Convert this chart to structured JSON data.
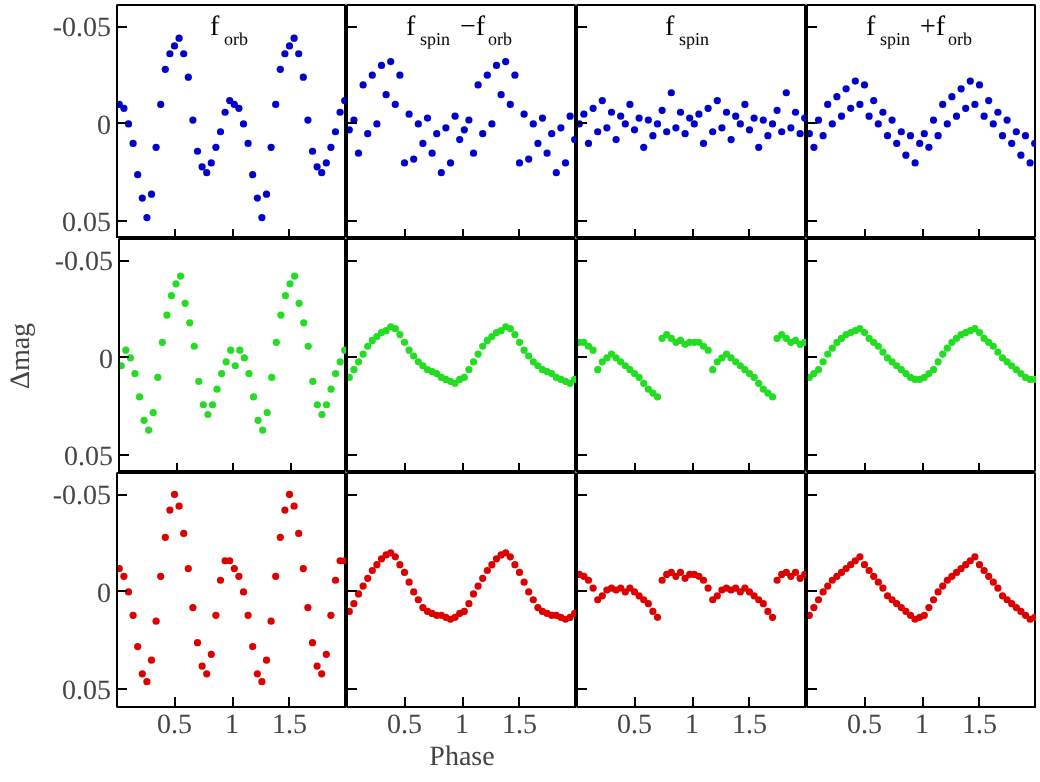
{
  "chart_data": [
    {
      "type": "scatter",
      "title": "f$_{orb}$",
      "color": "#0000cc",
      "marker": "circle",
      "xlim": [
        0,
        2
      ],
      "ylim": [
        0.059,
        -0.061
      ],
      "xticks": [
        0.5,
        1,
        1.5
      ],
      "yticks": [
        -0.05,
        0,
        0.05
      ],
      "tick_labels": "y",
      "x": [
        0.02,
        0.06,
        0.1,
        0.14,
        0.18,
        0.22,
        0.26,
        0.3,
        0.34,
        0.38,
        0.42,
        0.46,
        0.5,
        0.54,
        0.58,
        0.62,
        0.66,
        0.7,
        0.74,
        0.78,
        0.82,
        0.86,
        0.9,
        0.94,
        0.98,
        1.02,
        1.06,
        1.1,
        1.14,
        1.18,
        1.22,
        1.26,
        1.3,
        1.34,
        1.38,
        1.42,
        1.46,
        1.5,
        1.54,
        1.58,
        1.62,
        1.66,
        1.7,
        1.74,
        1.78,
        1.82,
        1.86,
        1.9,
        1.94,
        1.98
      ],
      "values": [
        -0.01,
        -0.008,
        0.0,
        0.01,
        0.026,
        0.038,
        0.048,
        0.036,
        0.012,
        -0.01,
        -0.028,
        -0.036,
        -0.04,
        -0.044,
        -0.036,
        -0.024,
        -0.002,
        0.014,
        0.022,
        0.025,
        0.02,
        0.012,
        0.004,
        -0.006,
        -0.012,
        -0.01,
        -0.008,
        0.0,
        0.01,
        0.026,
        0.038,
        0.048,
        0.036,
        0.012,
        -0.01,
        -0.028,
        -0.036,
        -0.04,
        -0.044,
        -0.036,
        -0.024,
        -0.002,
        0.014,
        0.022,
        0.025,
        0.02,
        0.012,
        0.004,
        -0.006,
        -0.012
      ]
    },
    {
      "type": "scatter",
      "title": "f$_{spin}$−f$_{orb}$",
      "color": "#0000cc",
      "marker": "circle",
      "xlim": [
        0,
        2
      ],
      "ylim": [
        0.059,
        -0.061
      ],
      "xticks": [
        0.5,
        1,
        1.5
      ],
      "yticks": [
        -0.05,
        0,
        0.05
      ],
      "tick_labels": false,
      "x": [
        0.02,
        0.06,
        0.1,
        0.14,
        0.18,
        0.22,
        0.26,
        0.3,
        0.34,
        0.38,
        0.42,
        0.46,
        0.5,
        0.54,
        0.58,
        0.62,
        0.66,
        0.7,
        0.74,
        0.78,
        0.82,
        0.86,
        0.9,
        0.94,
        0.98,
        1.02,
        1.06,
        1.1,
        1.14,
        1.18,
        1.22,
        1.26,
        1.3,
        1.34,
        1.38,
        1.42,
        1.46,
        1.5,
        1.54,
        1.58,
        1.62,
        1.66,
        1.7,
        1.74,
        1.78,
        1.82,
        1.86,
        1.9,
        1.94,
        1.98
      ],
      "values": [
        0.003,
        -0.002,
        0.015,
        -0.02,
        0.005,
        -0.025,
        0.0,
        -0.03,
        -0.015,
        -0.032,
        -0.01,
        -0.025,
        0.02,
        -0.005,
        0.018,
        0.0,
        0.01,
        -0.003,
        0.015,
        0.005,
        0.025,
        0.002,
        0.02,
        -0.004,
        0.008,
        0.003,
        -0.002,
        0.015,
        -0.02,
        0.005,
        -0.025,
        0.0,
        -0.03,
        -0.015,
        -0.032,
        -0.01,
        -0.025,
        0.02,
        -0.005,
        0.018,
        0.0,
        0.01,
        -0.003,
        0.015,
        0.005,
        0.025,
        0.002,
        0.02,
        -0.004,
        0.008
      ]
    },
    {
      "type": "scatter",
      "title": "f$_{spin}$",
      "color": "#0000cc",
      "marker": "circle",
      "xlim": [
        0,
        2
      ],
      "ylim": [
        0.059,
        -0.061
      ],
      "xticks": [
        0.5,
        1,
        1.5
      ],
      "yticks": [
        -0.05,
        0,
        0.05
      ],
      "tick_labels": false,
      "x": [
        0.02,
        0.06,
        0.1,
        0.14,
        0.18,
        0.22,
        0.26,
        0.3,
        0.34,
        0.38,
        0.42,
        0.46,
        0.5,
        0.54,
        0.58,
        0.62,
        0.66,
        0.7,
        0.74,
        0.78,
        0.82,
        0.86,
        0.9,
        0.94,
        0.98,
        1.02,
        1.06,
        1.1,
        1.14,
        1.18,
        1.22,
        1.26,
        1.3,
        1.34,
        1.38,
        1.42,
        1.46,
        1.5,
        1.54,
        1.58,
        1.62,
        1.66,
        1.7,
        1.74,
        1.78,
        1.82,
        1.86,
        1.9,
        1.94,
        1.98
      ],
      "values": [
        0.0,
        -0.005,
        0.01,
        -0.008,
        0.004,
        -0.012,
        0.002,
        -0.006,
        0.008,
        -0.004,
        0.0,
        -0.01,
        0.003,
        -0.003,
        0.012,
        -0.002,
        0.006,
        0.0,
        -0.007,
        0.004,
        -0.016,
        0.002,
        -0.006,
        0.005,
        -0.003,
        0.0,
        -0.005,
        0.01,
        -0.008,
        0.004,
        -0.012,
        0.002,
        -0.006,
        0.008,
        -0.004,
        0.0,
        -0.01,
        0.003,
        -0.003,
        0.012,
        -0.002,
        0.006,
        0.0,
        -0.007,
        0.004,
        -0.016,
        0.002,
        -0.006,
        0.005,
        -0.003
      ]
    },
    {
      "type": "scatter",
      "title": "f$_{spin}$+f$_{orb}$",
      "color": "#0000cc",
      "marker": "circle",
      "xlim": [
        0,
        2
      ],
      "ylim": [
        0.059,
        -0.061
      ],
      "xticks": [
        0.5,
        1,
        1.5
      ],
      "yticks": [
        -0.05,
        0,
        0.05
      ],
      "tick_labels": false,
      "x": [
        0.02,
        0.06,
        0.1,
        0.14,
        0.18,
        0.22,
        0.26,
        0.3,
        0.34,
        0.38,
        0.42,
        0.46,
        0.5,
        0.54,
        0.58,
        0.62,
        0.66,
        0.7,
        0.74,
        0.78,
        0.82,
        0.86,
        0.9,
        0.94,
        0.98,
        1.02,
        1.06,
        1.1,
        1.14,
        1.18,
        1.22,
        1.26,
        1.3,
        1.34,
        1.38,
        1.42,
        1.46,
        1.5,
        1.54,
        1.58,
        1.62,
        1.66,
        1.7,
        1.74,
        1.78,
        1.82,
        1.86,
        1.9,
        1.94,
        1.98
      ],
      "values": [
        0.005,
        0.012,
        -0.002,
        0.006,
        -0.01,
        0.0,
        -0.014,
        -0.004,
        -0.018,
        -0.008,
        -0.022,
        -0.01,
        -0.02,
        -0.004,
        -0.012,
        0.0,
        -0.006,
        0.006,
        -0.002,
        0.01,
        0.004,
        0.016,
        0.006,
        0.02,
        0.01,
        0.005,
        0.012,
        -0.002,
        0.006,
        -0.01,
        0.0,
        -0.014,
        -0.004,
        -0.018,
        -0.008,
        -0.022,
        -0.01,
        -0.02,
        -0.004,
        -0.012,
        0.0,
        -0.006,
        0.006,
        -0.002,
        0.01,
        0.004,
        0.016,
        0.006,
        0.02,
        0.01
      ]
    },
    {
      "type": "scatter",
      "ylabel": "Δmag",
      "color": "#22dd22",
      "marker": "circle",
      "xlim": [
        0,
        2
      ],
      "ylim": [
        0.059,
        -0.061
      ],
      "xticks": [
        0.5,
        1,
        1.5
      ],
      "yticks": [
        -0.05,
        0,
        0.05
      ],
      "tick_labels": "y",
      "x": [
        0.02,
        0.06,
        0.1,
        0.14,
        0.18,
        0.22,
        0.26,
        0.3,
        0.34,
        0.38,
        0.42,
        0.46,
        0.5,
        0.54,
        0.58,
        0.62,
        0.66,
        0.7,
        0.74,
        0.78,
        0.82,
        0.86,
        0.9,
        0.94,
        0.98,
        1.02,
        1.06,
        1.1,
        1.14,
        1.18,
        1.22,
        1.26,
        1.3,
        1.34,
        1.38,
        1.42,
        1.46,
        1.5,
        1.54,
        1.58,
        1.62,
        1.66,
        1.7,
        1.74,
        1.78,
        1.82,
        1.86,
        1.9,
        1.94,
        1.98
      ],
      "values": [
        0.004,
        -0.004,
        0.0,
        0.008,
        0.02,
        0.032,
        0.037,
        0.028,
        0.01,
        -0.008,
        -0.022,
        -0.032,
        -0.038,
        -0.042,
        -0.028,
        -0.018,
        -0.006,
        0.012,
        0.024,
        0.029,
        0.024,
        0.016,
        0.008,
        0.002,
        -0.004,
        0.004,
        -0.004,
        0.0,
        0.008,
        0.02,
        0.032,
        0.037,
        0.028,
        0.01,
        -0.008,
        -0.022,
        -0.032,
        -0.038,
        -0.042,
        -0.028,
        -0.018,
        -0.006,
        0.012,
        0.024,
        0.029,
        0.024,
        0.016,
        0.008,
        0.002,
        -0.004
      ]
    },
    {
      "type": "scatter",
      "color": "#22dd22",
      "marker": "circle",
      "xlim": [
        0,
        2
      ],
      "ylim": [
        0.059,
        -0.061
      ],
      "xticks": [
        0.5,
        1,
        1.5
      ],
      "yticks": [
        -0.05,
        0,
        0.05
      ],
      "tick_labels": false,
      "x": [
        0.02,
        0.06,
        0.1,
        0.14,
        0.18,
        0.22,
        0.26,
        0.3,
        0.34,
        0.38,
        0.42,
        0.46,
        0.5,
        0.54,
        0.58,
        0.62,
        0.66,
        0.7,
        0.74,
        0.78,
        0.82,
        0.86,
        0.9,
        0.94,
        0.98,
        1.02,
        1.06,
        1.1,
        1.14,
        1.18,
        1.22,
        1.26,
        1.3,
        1.34,
        1.38,
        1.42,
        1.46,
        1.5,
        1.54,
        1.58,
        1.62,
        1.66,
        1.7,
        1.74,
        1.78,
        1.82,
        1.86,
        1.9,
        1.94,
        1.98
      ],
      "values": [
        0.01,
        0.006,
        0.002,
        -0.002,
        -0.006,
        -0.009,
        -0.011,
        -0.013,
        -0.014,
        -0.016,
        -0.015,
        -0.012,
        -0.008,
        -0.004,
        -0.001,
        0.002,
        0.004,
        0.006,
        0.007,
        0.008,
        0.01,
        0.011,
        0.012,
        0.013,
        0.011,
        0.01,
        0.006,
        0.002,
        -0.002,
        -0.006,
        -0.009,
        -0.011,
        -0.013,
        -0.014,
        -0.016,
        -0.015,
        -0.012,
        -0.008,
        -0.004,
        -0.001,
        0.002,
        0.004,
        0.006,
        0.007,
        0.008,
        0.01,
        0.011,
        0.012,
        0.013,
        0.011
      ]
    },
    {
      "type": "scatter",
      "color": "#22dd22",
      "marker": "circle",
      "xlim": [
        0,
        2
      ],
      "ylim": [
        0.059,
        -0.061
      ],
      "xticks": [
        0.5,
        1,
        1.5
      ],
      "yticks": [
        -0.05,
        0,
        0.05
      ],
      "tick_labels": false,
      "x": [
        0.02,
        0.06,
        0.1,
        0.14,
        0.18,
        0.22,
        0.26,
        0.3,
        0.34,
        0.38,
        0.42,
        0.46,
        0.5,
        0.54,
        0.58,
        0.62,
        0.66,
        0.7,
        0.74,
        0.78,
        0.82,
        0.86,
        0.9,
        0.94,
        0.98,
        1.02,
        1.06,
        1.1,
        1.14,
        1.18,
        1.22,
        1.26,
        1.3,
        1.34,
        1.38,
        1.42,
        1.46,
        1.5,
        1.54,
        1.58,
        1.62,
        1.66,
        1.7,
        1.74,
        1.78,
        1.82,
        1.86,
        1.9,
        1.94,
        1.98
      ],
      "values": [
        -0.008,
        -0.008,
        -0.006,
        -0.004,
        0.006,
        0.002,
        0.0,
        -0.002,
        0.0,
        0.002,
        0.004,
        0.006,
        0.008,
        0.01,
        0.013,
        0.016,
        0.018,
        0.02,
        -0.01,
        -0.012,
        -0.01,
        -0.008,
        -0.009,
        -0.007,
        -0.008,
        -0.008,
        -0.008,
        -0.006,
        -0.004,
        0.006,
        0.002,
        0.0,
        -0.002,
        0.0,
        0.002,
        0.004,
        0.006,
        0.008,
        0.01,
        0.013,
        0.016,
        0.018,
        0.02,
        -0.01,
        -0.012,
        -0.01,
        -0.008,
        -0.009,
        -0.007,
        -0.008
      ]
    },
    {
      "type": "scatter",
      "color": "#22dd22",
      "marker": "circle",
      "xlim": [
        0,
        2
      ],
      "ylim": [
        0.059,
        -0.061
      ],
      "xticks": [
        0.5,
        1,
        1.5
      ],
      "yticks": [
        -0.05,
        0,
        0.05
      ],
      "tick_labels": false,
      "x": [
        0.02,
        0.06,
        0.1,
        0.14,
        0.18,
        0.22,
        0.26,
        0.3,
        0.34,
        0.38,
        0.42,
        0.46,
        0.5,
        0.54,
        0.58,
        0.62,
        0.66,
        0.7,
        0.74,
        0.78,
        0.82,
        0.86,
        0.9,
        0.94,
        0.98,
        1.02,
        1.06,
        1.1,
        1.14,
        1.18,
        1.22,
        1.26,
        1.3,
        1.34,
        1.38,
        1.42,
        1.46,
        1.5,
        1.54,
        1.58,
        1.62,
        1.66,
        1.7,
        1.74,
        1.78,
        1.82,
        1.86,
        1.9,
        1.94,
        1.98
      ],
      "values": [
        0.01,
        0.008,
        0.006,
        0.002,
        -0.002,
        -0.005,
        -0.008,
        -0.01,
        -0.012,
        -0.013,
        -0.014,
        -0.015,
        -0.013,
        -0.01,
        -0.008,
        -0.006,
        -0.003,
        0.0,
        0.002,
        0.004,
        0.006,
        0.008,
        0.01,
        0.011,
        0.011,
        0.01,
        0.008,
        0.006,
        0.002,
        -0.002,
        -0.005,
        -0.008,
        -0.01,
        -0.012,
        -0.013,
        -0.014,
        -0.015,
        -0.013,
        -0.01,
        -0.008,
        -0.006,
        -0.003,
        0.0,
        0.002,
        0.004,
        0.006,
        0.008,
        0.01,
        0.011,
        0.011
      ]
    },
    {
      "type": "scatter",
      "color": "#dd0000",
      "marker": "circle",
      "xlim": [
        0,
        2
      ],
      "ylim": [
        0.059,
        -0.061
      ],
      "xticks": [
        0.5,
        1,
        1.5
      ],
      "yticks": [
        -0.05,
        0,
        0.05
      ],
      "x": [
        0.02,
        0.06,
        0.1,
        0.14,
        0.18,
        0.22,
        0.26,
        0.3,
        0.34,
        0.38,
        0.42,
        0.46,
        0.5,
        0.54,
        0.58,
        0.62,
        0.66,
        0.7,
        0.74,
        0.78,
        0.82,
        0.86,
        0.9,
        0.94,
        0.98,
        1.02,
        1.06,
        1.1,
        1.14,
        1.18,
        1.22,
        1.26,
        1.3,
        1.34,
        1.38,
        1.42,
        1.46,
        1.5,
        1.54,
        1.58,
        1.62,
        1.66,
        1.7,
        1.74,
        1.78,
        1.82,
        1.86,
        1.9,
        1.94,
        1.98
      ],
      "values": [
        -0.012,
        -0.008,
        0.0,
        0.012,
        0.028,
        0.042,
        0.046,
        0.035,
        0.015,
        -0.008,
        -0.028,
        -0.042,
        -0.05,
        -0.044,
        -0.03,
        -0.012,
        0.008,
        0.026,
        0.038,
        0.042,
        0.032,
        0.012,
        -0.006,
        -0.016,
        -0.016,
        -0.012,
        -0.008,
        0.0,
        0.012,
        0.028,
        0.042,
        0.046,
        0.035,
        0.015,
        -0.008,
        -0.028,
        -0.042,
        -0.05,
        -0.044,
        -0.03,
        -0.012,
        0.008,
        0.026,
        0.038,
        0.042,
        0.032,
        0.012,
        -0.006,
        -0.016,
        -0.016
      ]
    },
    {
      "type": "scatter",
      "xlabel": "Phase",
      "color": "#dd0000",
      "marker": "circle",
      "xlim": [
        0,
        2
      ],
      "ylim": [
        0.059,
        -0.061
      ],
      "xticks": [
        0.5,
        1,
        1.5
      ],
      "yticks": [
        -0.05,
        0,
        0.05
      ],
      "tick_labels": "x",
      "x": [
        0.02,
        0.06,
        0.1,
        0.14,
        0.18,
        0.22,
        0.26,
        0.3,
        0.34,
        0.38,
        0.42,
        0.46,
        0.5,
        0.54,
        0.58,
        0.62,
        0.66,
        0.7,
        0.74,
        0.78,
        0.82,
        0.86,
        0.9,
        0.94,
        0.98,
        1.02,
        1.06,
        1.1,
        1.14,
        1.18,
        1.22,
        1.26,
        1.3,
        1.34,
        1.38,
        1.42,
        1.46,
        1.5,
        1.54,
        1.58,
        1.62,
        1.66,
        1.7,
        1.74,
        1.78,
        1.82,
        1.86,
        1.9,
        1.94,
        1.98
      ],
      "values": [
        0.01,
        0.006,
        0.001,
        -0.003,
        -0.007,
        -0.011,
        -0.014,
        -0.017,
        -0.019,
        -0.02,
        -0.018,
        -0.014,
        -0.01,
        -0.005,
        0.0,
        0.004,
        0.008,
        0.01,
        0.011,
        0.012,
        0.012,
        0.013,
        0.014,
        0.013,
        0.011,
        0.01,
        0.006,
        0.001,
        -0.003,
        -0.007,
        -0.011,
        -0.014,
        -0.017,
        -0.019,
        -0.02,
        -0.018,
        -0.014,
        -0.01,
        -0.005,
        0.0,
        0.004,
        0.008,
        0.01,
        0.011,
        0.012,
        0.012,
        0.013,
        0.014,
        0.013,
        0.011
      ]
    },
    {
      "type": "scatter",
      "color": "#dd0000",
      "marker": "circle",
      "xlim": [
        0,
        2
      ],
      "ylim": [
        0.059,
        -0.061
      ],
      "xticks": [
        0.5,
        1,
        1.5
      ],
      "yticks": [
        -0.05,
        0,
        0.05
      ],
      "tick_labels": "x",
      "x": [
        0.02,
        0.06,
        0.1,
        0.14,
        0.18,
        0.22,
        0.26,
        0.3,
        0.34,
        0.38,
        0.42,
        0.46,
        0.5,
        0.54,
        0.58,
        0.62,
        0.66,
        0.7,
        0.74,
        0.78,
        0.82,
        0.86,
        0.9,
        0.94,
        0.98,
        1.02,
        1.06,
        1.1,
        1.14,
        1.18,
        1.22,
        1.26,
        1.3,
        1.34,
        1.38,
        1.42,
        1.46,
        1.5,
        1.54,
        1.58,
        1.62,
        1.66,
        1.7,
        1.74,
        1.78,
        1.82,
        1.86,
        1.9,
        1.94,
        1.98
      ],
      "values": [
        -0.009,
        -0.008,
        -0.006,
        -0.002,
        0.004,
        0.002,
        -0.001,
        -0.002,
        -0.001,
        -0.002,
        0.0,
        -0.002,
        0.0,
        0.002,
        0.004,
        0.006,
        0.01,
        0.013,
        -0.006,
        -0.009,
        -0.01,
        -0.008,
        -0.01,
        -0.007,
        -0.009,
        -0.009,
        -0.008,
        -0.006,
        -0.002,
        0.004,
        0.002,
        -0.001,
        -0.002,
        -0.001,
        -0.002,
        0.0,
        -0.002,
        0.0,
        0.002,
        0.004,
        0.006,
        0.01,
        0.013,
        -0.006,
        -0.009,
        -0.01,
        -0.008,
        -0.01,
        -0.007,
        -0.009
      ]
    },
    {
      "type": "scatter",
      "color": "#dd0000",
      "marker": "circle",
      "xlim": [
        0,
        2
      ],
      "ylim": [
        0.059,
        -0.061
      ],
      "xticks": [
        0.5,
        1,
        1.5
      ],
      "yticks": [
        -0.05,
        0,
        0.05
      ],
      "tick_labels": "x",
      "x": [
        0.02,
        0.06,
        0.1,
        0.14,
        0.18,
        0.22,
        0.26,
        0.3,
        0.34,
        0.38,
        0.42,
        0.46,
        0.5,
        0.54,
        0.58,
        0.62,
        0.66,
        0.7,
        0.74,
        0.78,
        0.82,
        0.86,
        0.9,
        0.94,
        0.98,
        1.02,
        1.06,
        1.1,
        1.14,
        1.18,
        1.22,
        1.26,
        1.3,
        1.34,
        1.38,
        1.42,
        1.46,
        1.5,
        1.54,
        1.58,
        1.62,
        1.66,
        1.7,
        1.74,
        1.78,
        1.82,
        1.86,
        1.9,
        1.94,
        1.98
      ],
      "values": [
        0.012,
        0.008,
        0.004,
        0.0,
        -0.003,
        -0.006,
        -0.008,
        -0.01,
        -0.012,
        -0.014,
        -0.016,
        -0.018,
        -0.014,
        -0.011,
        -0.008,
        -0.005,
        -0.002,
        0.002,
        0.004,
        0.006,
        0.008,
        0.01,
        0.012,
        0.014,
        0.013,
        0.012,
        0.008,
        0.004,
        0.0,
        -0.003,
        -0.006,
        -0.008,
        -0.01,
        -0.012,
        -0.014,
        -0.016,
        -0.018,
        -0.014,
        -0.011,
        -0.008,
        -0.005,
        -0.002,
        0.002,
        0.004,
        0.006,
        0.008,
        0.01,
        0.012,
        0.014,
        0.013
      ]
    }
  ]
}
